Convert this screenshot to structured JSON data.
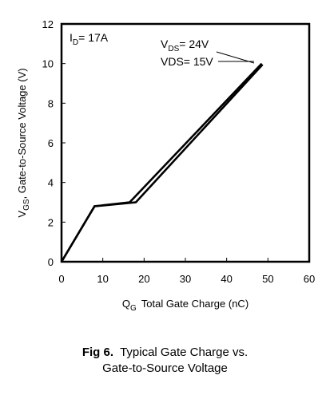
{
  "chart_data": {
    "type": "line",
    "xlabel": {
      "prefix": "Q",
      "sub": "G",
      "text": "Total Gate Charge (nC)"
    },
    "ylabel": {
      "prefix": "V",
      "sub": "GS",
      "text": ", Gate-to-Source Voltage (V)"
    },
    "xlim": [
      0,
      60
    ],
    "ylim": [
      0,
      12
    ],
    "xticks": [
      "0",
      "10",
      "20",
      "30",
      "40",
      "50",
      "60"
    ],
    "yticks": [
      "0",
      "2",
      "4",
      "6",
      "8",
      "10",
      "12"
    ],
    "grid": false,
    "annotation": {
      "prefix": "I",
      "sub": "D",
      "text": "= 17A"
    },
    "series": [
      {
        "label": {
          "prefix": "V",
          "sub": "DS",
          "text": "= 24V"
        },
        "x": [
          0,
          8,
          16.5,
          48.5
        ],
        "y": [
          0,
          2.8,
          3.0,
          10.0
        ]
      },
      {
        "label": {
          "prefix": "",
          "sub": "",
          "text": "VDS= 15V"
        },
        "x": [
          0,
          8,
          18,
          48.7
        ],
        "y": [
          0,
          2.8,
          3.0,
          9.95
        ]
      }
    ]
  },
  "caption": {
    "fig": "Fig 6.",
    "line1": "Typical Gate Charge vs.",
    "line2": "Gate-to-Source Voltage"
  }
}
